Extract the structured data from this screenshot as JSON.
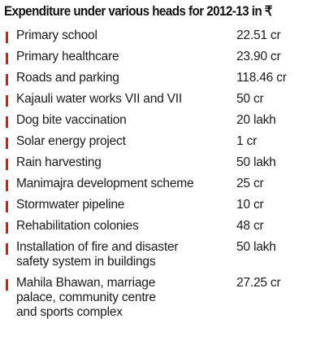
{
  "title": "Expenditure under various heads for 2012-13 in ₹",
  "accent_color": "#d71920",
  "items": [
    {
      "label": "Primary school",
      "value": "22.51 cr"
    },
    {
      "label": "Primary healthcare",
      "value": "23.90 cr"
    },
    {
      "label": "Roads and parking",
      "value": "118.46 cr"
    },
    {
      "label": "Kajauli water works VII and VII",
      "value": "50 cr"
    },
    {
      "label": "Dog bite vaccination",
      "value": "20 lakh"
    },
    {
      "label": "Solar energy project",
      "value": "1 cr"
    },
    {
      "label": "Rain harvesting",
      "value": "50 lakh"
    },
    {
      "label": "Manimajra development scheme",
      "value": "25 cr"
    },
    {
      "label": "Stormwater pipeline",
      "value": "10 cr"
    },
    {
      "label": "Rehabilitation colonies",
      "value": "48 cr"
    },
    {
      "label": "Installation of fire and disaster\nsafety system in buildings",
      "value": "50 lakh"
    },
    {
      "label": "Mahila Bhawan, marriage\npalace, community centre\nand sports complex",
      "value": "27.25 cr"
    }
  ]
}
